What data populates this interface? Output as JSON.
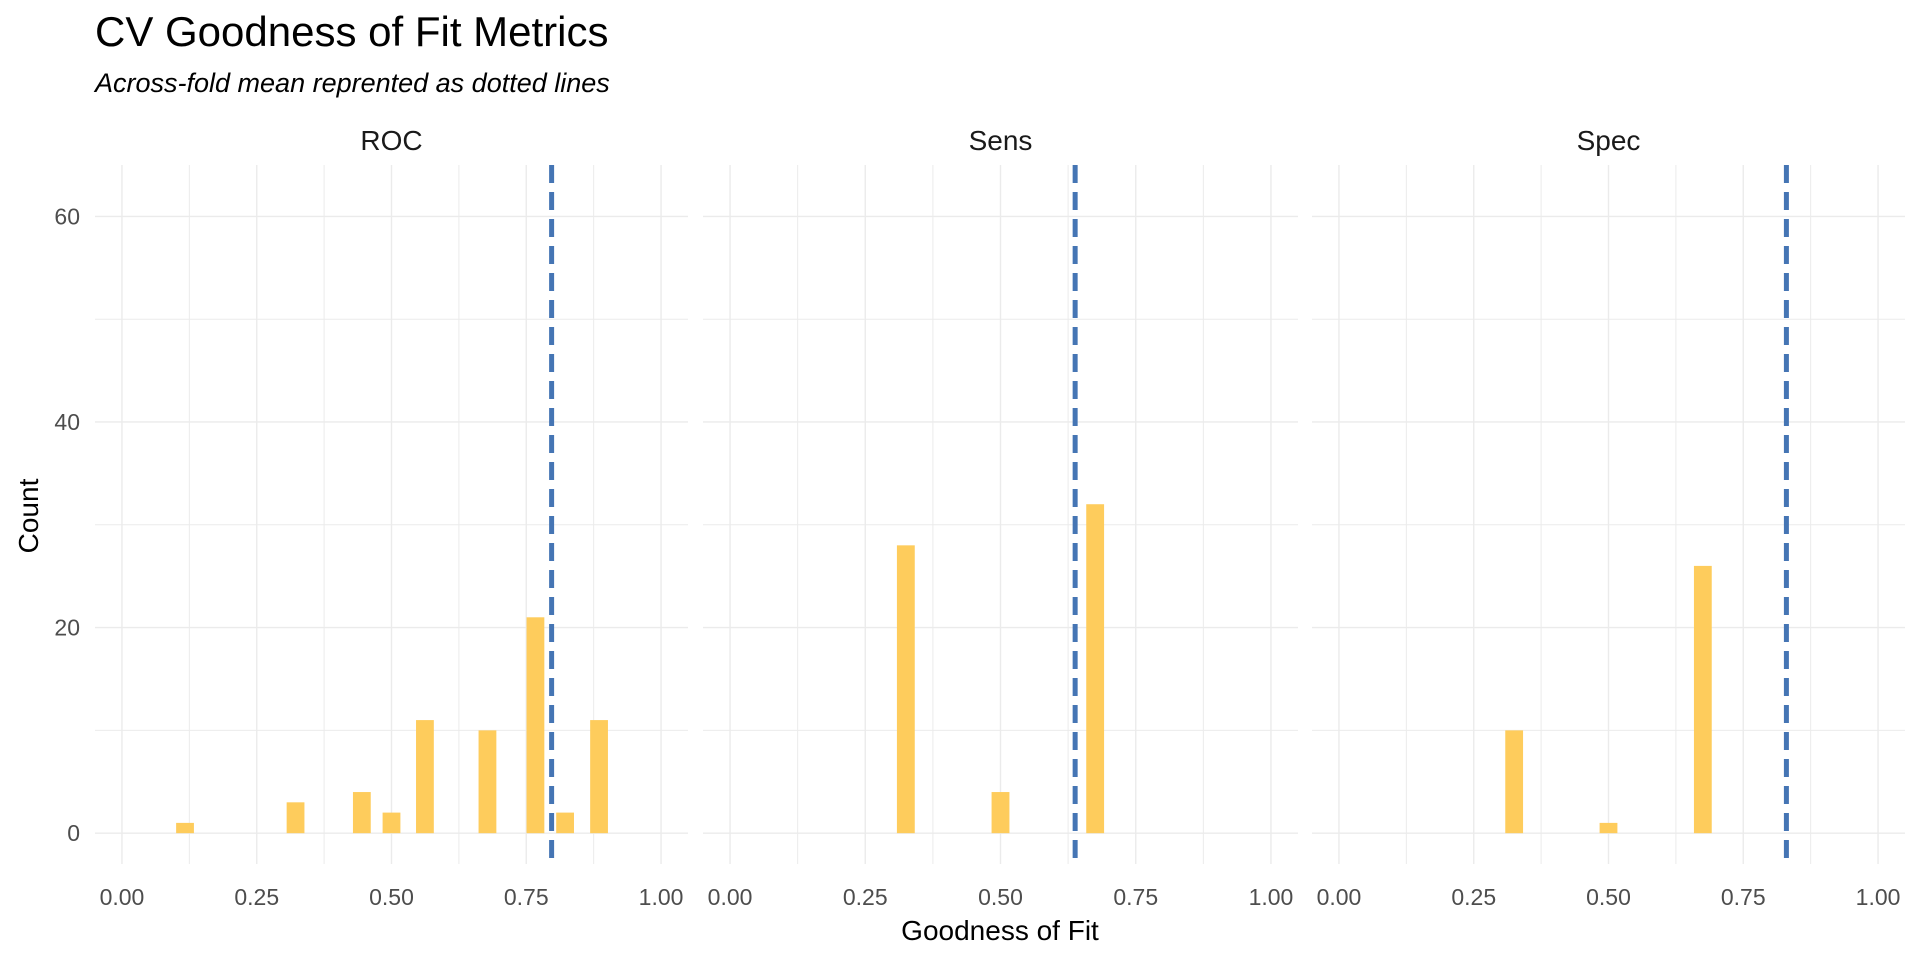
{
  "chart_data": {
    "type": "bar",
    "title": "CV Goodness of Fit Metrics",
    "subtitle": "Across-fold mean reprented as dotted lines",
    "xlabel": "Goodness of Fit",
    "ylabel": "Count",
    "xlim": [
      -0.05,
      1.05
    ],
    "ylim": [
      -3,
      65
    ],
    "x_ticks": [
      0.0,
      0.25,
      0.5,
      0.75,
      1.0
    ],
    "x_tick_labels": [
      "0.00",
      "0.25",
      "0.50",
      "0.75",
      "1.00"
    ],
    "y_ticks": [
      0,
      20,
      40,
      60
    ],
    "y_tick_labels": [
      "0",
      "20",
      "40",
      "60"
    ],
    "bar_width": 0.033,
    "grid": true,
    "colors": {
      "bar": "#FECC5C",
      "mean_line": "#4575B4",
      "grid": "#EBEBEB"
    },
    "facets": [
      {
        "name": "ROC",
        "mean": 0.797,
        "bars": [
          {
            "x": 0.117,
            "count": 1
          },
          {
            "x": 0.322,
            "count": 3
          },
          {
            "x": 0.445,
            "count": 4
          },
          {
            "x": 0.5,
            "count": 2
          },
          {
            "x": 0.562,
            "count": 11
          },
          {
            "x": 0.678,
            "count": 10
          },
          {
            "x": 0.767,
            "count": 21
          },
          {
            "x": 0.822,
            "count": 2
          },
          {
            "x": 0.885,
            "count": 11
          }
        ]
      },
      {
        "name": "Sens",
        "mean": 0.638,
        "bars": [
          {
            "x": 0.325,
            "count": 28
          },
          {
            "x": 0.5,
            "count": 4
          },
          {
            "x": 0.675,
            "count": 32
          }
        ]
      },
      {
        "name": "Spec",
        "mean": 0.83,
        "bars": [
          {
            "x": 0.325,
            "count": 10
          },
          {
            "x": 0.5,
            "count": 1
          },
          {
            "x": 0.675,
            "count": 26
          }
        ]
      }
    ]
  }
}
